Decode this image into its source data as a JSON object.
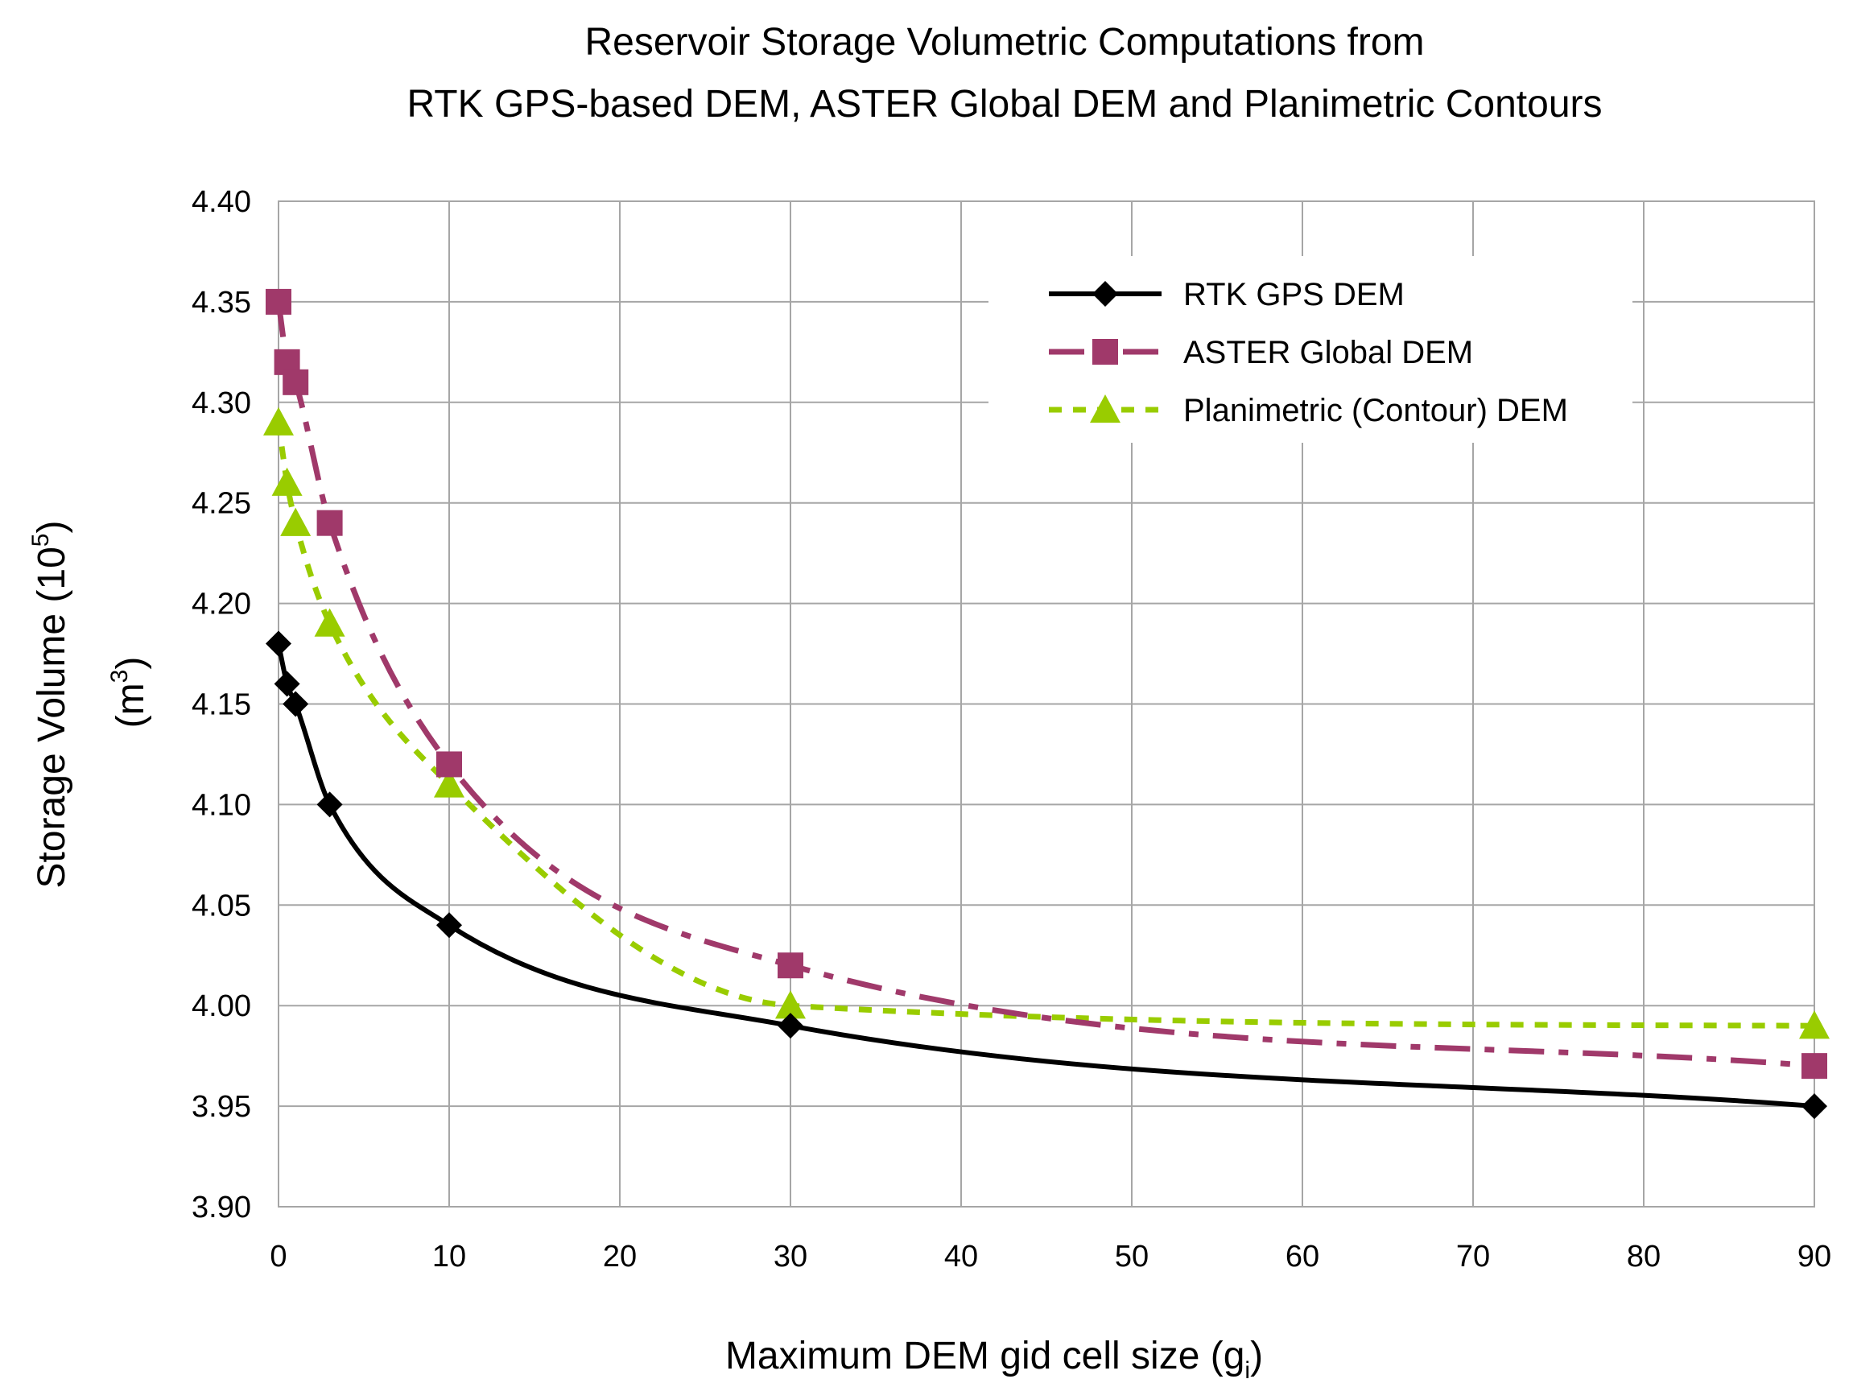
{
  "title_line1": "Reservoir Storage Volumetric Computations from",
  "title_line2": "RTK GPS-based DEM, ASTER Global DEM and Planimetric Contours",
  "ylabel_main": "Storage Volume (10",
  "ylabel_exp": "5",
  "ylabel_close": ")",
  "ylabel_unit": "(m",
  "ylabel_unit_exp": "3",
  "ylabel_unit_close": ")",
  "xlabel_main": "Maximum DEM gid cell size (g",
  "xlabel_sub": "i",
  "xlabel_close": ")",
  "chart_data": {
    "type": "line",
    "xlim": [
      0,
      90
    ],
    "ylim": [
      3.9,
      4.4
    ],
    "x_ticks": [
      0,
      10,
      20,
      30,
      40,
      50,
      60,
      70,
      80,
      90
    ],
    "x_tick_labels": [
      "0",
      "10",
      "20",
      "30",
      "40",
      "50",
      "60",
      "70",
      "80",
      "90"
    ],
    "y_ticks": [
      3.9,
      3.95,
      4.0,
      4.05,
      4.1,
      4.15,
      4.2,
      4.25,
      4.3,
      4.35,
      4.4
    ],
    "y_tick_labels": [
      "3.90",
      "3.95",
      "4.00",
      "4.05",
      "4.10",
      "4.15",
      "4.20",
      "4.25",
      "4.30",
      "4.35",
      "4.40"
    ],
    "grid": true,
    "legend_position": "top-right",
    "series": [
      {
        "name": "RTK GPS DEM",
        "color": "#000000",
        "marker": "diamond",
        "dash": "solid",
        "x": [
          0,
          0.5,
          1,
          3,
          10,
          30,
          90
        ],
        "y": [
          4.18,
          4.16,
          4.15,
          4.1,
          4.04,
          3.99,
          3.95
        ]
      },
      {
        "name": "ASTER Global DEM",
        "color": "#a0396a",
        "marker": "square",
        "dash": "dashdot",
        "x": [
          0,
          0.5,
          1,
          3,
          10,
          30,
          90
        ],
        "y": [
          4.35,
          4.32,
          4.31,
          4.24,
          4.12,
          4.02,
          3.97
        ]
      },
      {
        "name": "Planimetric (Contour) DEM",
        "color": "#99cc00",
        "marker": "triangle",
        "dash": "dotted",
        "x": [
          0,
          0.5,
          1,
          3,
          10,
          30,
          90
        ],
        "y": [
          4.29,
          4.26,
          4.24,
          4.19,
          4.11,
          4.0,
          3.99
        ]
      }
    ]
  }
}
